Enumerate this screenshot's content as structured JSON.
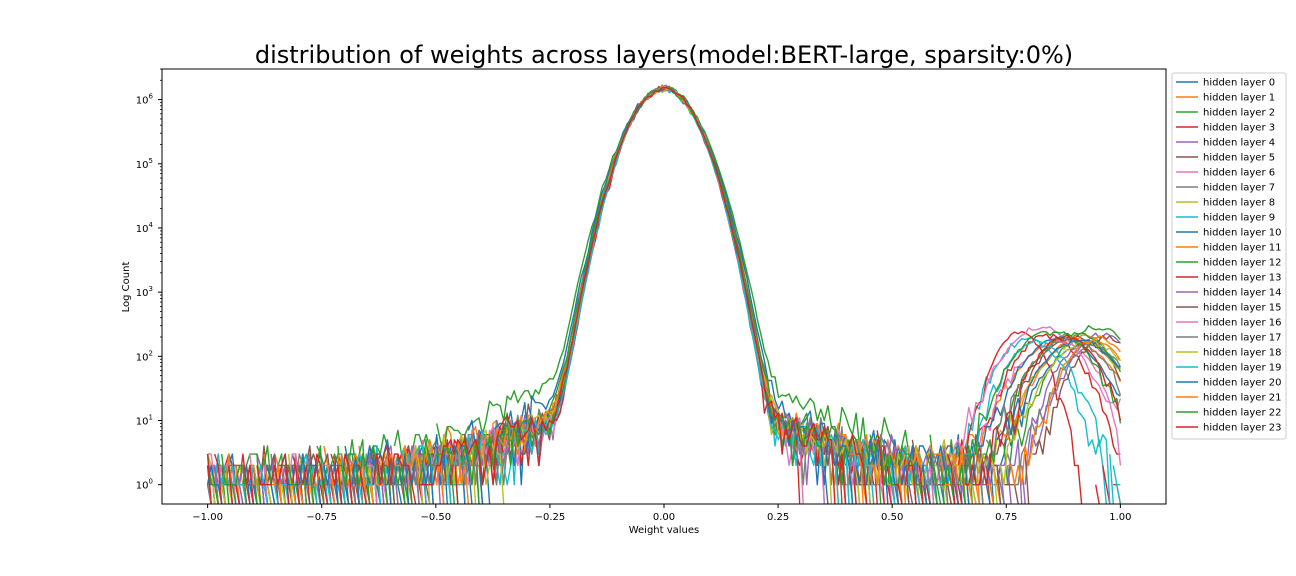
{
  "chart_data": {
    "type": "line",
    "title": "distribution of weights across layers(model:BERT-large, sparsity:0%)",
    "xlabel": "Weight values",
    "ylabel": "Log Count",
    "yscale": "log",
    "xlim": [
      -1.1,
      1.1
    ],
    "ylim": [
      0.5,
      3000000
    ],
    "xticks": [
      -1.0,
      -0.75,
      -0.5,
      -0.25,
      0.0,
      0.25,
      0.5,
      0.75,
      1.0
    ],
    "xtick_labels": [
      "−1.00",
      "−0.75",
      "−0.50",
      "−0.25",
      "0.00",
      "0.25",
      "0.50",
      "0.75",
      "1.00"
    ],
    "yticks": [
      1,
      10,
      100,
      1000,
      10000,
      100000,
      1000000
    ],
    "ytick_labels": [
      {
        "base": "10",
        "exp": "0"
      },
      {
        "base": "10",
        "exp": "1"
      },
      {
        "base": "10",
        "exp": "2"
      },
      {
        "base": "10",
        "exp": "3"
      },
      {
        "base": "10",
        "exp": "4"
      },
      {
        "base": "10",
        "exp": "5"
      },
      {
        "base": "10",
        "exp": "6"
      }
    ],
    "grid": false,
    "legend_position": "outside-right",
    "peak_count": 1500000,
    "series": [
      {
        "name": "hidden layer 0",
        "color": "#1f77b4",
        "core_std": 0.048,
        "left_shoulder": 0.9,
        "right_shoulder": 0.7,
        "outlier_center": 0.92,
        "outlier_peak": 150,
        "outlier_width": 0.06
      },
      {
        "name": "hidden layer 1",
        "color": "#ff7f0e",
        "core_std": 0.047,
        "left_shoulder": 1.2,
        "right_shoulder": 0.9,
        "outlier_center": 0.88,
        "outlier_peak": 180,
        "outlier_width": 0.07
      },
      {
        "name": "hidden layer 2",
        "color": "#2ca02c",
        "core_std": 0.05,
        "left_shoulder": 4.0,
        "right_shoulder": 3.0,
        "outlier_center": 0.95,
        "outlier_peak": 280,
        "outlier_width": 0.06
      },
      {
        "name": "hidden layer 3",
        "color": "#d62728",
        "core_std": 0.046,
        "left_shoulder": 0.8,
        "right_shoulder": 0.8,
        "outlier_center": 0.84,
        "outlier_peak": 220,
        "outlier_width": 0.05
      },
      {
        "name": "hidden layer 4",
        "color": "#9467bd",
        "core_std": 0.047,
        "left_shoulder": 1.0,
        "right_shoulder": 0.9,
        "outlier_center": 0.93,
        "outlier_peak": 160,
        "outlier_width": 0.05
      },
      {
        "name": "hidden layer 5",
        "color": "#8c564b",
        "core_std": 0.047,
        "left_shoulder": 1.0,
        "right_shoulder": 0.8,
        "outlier_center": 0.9,
        "outlier_peak": 200,
        "outlier_width": 0.06
      },
      {
        "name": "hidden layer 6",
        "color": "#e377c2",
        "core_std": 0.046,
        "left_shoulder": 0.9,
        "right_shoulder": 0.8,
        "outlier_center": 0.86,
        "outlier_peak": 170,
        "outlier_width": 0.06
      },
      {
        "name": "hidden layer 7",
        "color": "#7f7f7f",
        "core_std": 0.048,
        "left_shoulder": 1.1,
        "right_shoulder": 0.9,
        "outlier_center": 0.94,
        "outlier_peak": 140,
        "outlier_width": 0.05
      },
      {
        "name": "hidden layer 8",
        "color": "#bcbd22",
        "core_std": 0.047,
        "left_shoulder": 1.0,
        "right_shoulder": 0.9,
        "outlier_center": 0.91,
        "outlier_peak": 170,
        "outlier_width": 0.06
      },
      {
        "name": "hidden layer 9",
        "color": "#17becf",
        "core_std": 0.046,
        "left_shoulder": 0.9,
        "right_shoulder": 0.8,
        "outlier_center": 0.8,
        "outlier_peak": 190,
        "outlier_width": 0.05
      },
      {
        "name": "hidden layer 10",
        "color": "#1f77b4",
        "core_std": 0.049,
        "left_shoulder": 2.0,
        "right_shoulder": 1.6,
        "outlier_center": 0.87,
        "outlier_peak": 190,
        "outlier_width": 0.06
      },
      {
        "name": "hidden layer 11",
        "color": "#ff7f0e",
        "core_std": 0.048,
        "left_shoulder": 1.3,
        "right_shoulder": 1.0,
        "outlier_center": 0.92,
        "outlier_peak": 210,
        "outlier_width": 0.06
      },
      {
        "name": "hidden layer 12",
        "color": "#2ca02c",
        "core_std": 0.048,
        "left_shoulder": 1.2,
        "right_shoulder": 1.0,
        "outlier_center": 0.9,
        "outlier_peak": 230,
        "outlier_width": 0.06
      },
      {
        "name": "hidden layer 13",
        "color": "#d62728",
        "core_std": 0.046,
        "left_shoulder": 0.8,
        "right_shoulder": 0.8,
        "outlier_center": 0.78,
        "outlier_peak": 240,
        "outlier_width": 0.04
      },
      {
        "name": "hidden layer 14",
        "color": "#9467bd",
        "core_std": 0.047,
        "left_shoulder": 1.0,
        "right_shoulder": 0.9,
        "outlier_center": 0.96,
        "outlier_peak": 220,
        "outlier_width": 0.05
      },
      {
        "name": "hidden layer 15",
        "color": "#8c564b",
        "core_std": 0.047,
        "left_shoulder": 1.0,
        "right_shoulder": 0.9,
        "outlier_center": 0.97,
        "outlier_peak": 200,
        "outlier_width": 0.05
      },
      {
        "name": "hidden layer 16",
        "color": "#e377c2",
        "core_std": 0.047,
        "left_shoulder": 0.9,
        "right_shoulder": 0.9,
        "outlier_center": 0.83,
        "outlier_peak": 280,
        "outlier_width": 0.06
      },
      {
        "name": "hidden layer 17",
        "color": "#7f7f7f",
        "core_std": 0.047,
        "left_shoulder": 1.0,
        "right_shoulder": 0.9,
        "outlier_center": 0.89,
        "outlier_peak": 180,
        "outlier_width": 0.06
      },
      {
        "name": "hidden layer 18",
        "color": "#bcbd22",
        "core_std": 0.047,
        "left_shoulder": 1.0,
        "right_shoulder": 0.9,
        "outlier_center": 0.93,
        "outlier_peak": 170,
        "outlier_width": 0.06
      },
      {
        "name": "hidden layer 19",
        "color": "#17becf",
        "core_std": 0.046,
        "left_shoulder": 0.9,
        "right_shoulder": 0.8,
        "outlier_center": 0.82,
        "outlier_peak": 170,
        "outlier_width": 0.05
      },
      {
        "name": "hidden layer 20",
        "color": "#1f77b4",
        "core_std": 0.047,
        "left_shoulder": 1.0,
        "right_shoulder": 0.9,
        "outlier_center": 0.91,
        "outlier_peak": 180,
        "outlier_width": 0.06
      },
      {
        "name": "hidden layer 21",
        "color": "#ff7f0e",
        "core_std": 0.047,
        "left_shoulder": 1.0,
        "right_shoulder": 0.9,
        "outlier_center": 0.95,
        "outlier_peak": 190,
        "outlier_width": 0.05
      },
      {
        "name": "hidden layer 22",
        "color": "#2ca02c",
        "core_std": 0.047,
        "left_shoulder": 1.0,
        "right_shoulder": 0.9,
        "outlier_center": 0.85,
        "outlier_peak": 250,
        "outlier_width": 0.06
      },
      {
        "name": "hidden layer 23",
        "color": "#d62728",
        "core_std": 0.047,
        "left_shoulder": 1.0,
        "right_shoulder": 0.9,
        "outlier_center": 0.88,
        "outlier_peak": 200,
        "outlier_width": 0.05
      }
    ]
  }
}
